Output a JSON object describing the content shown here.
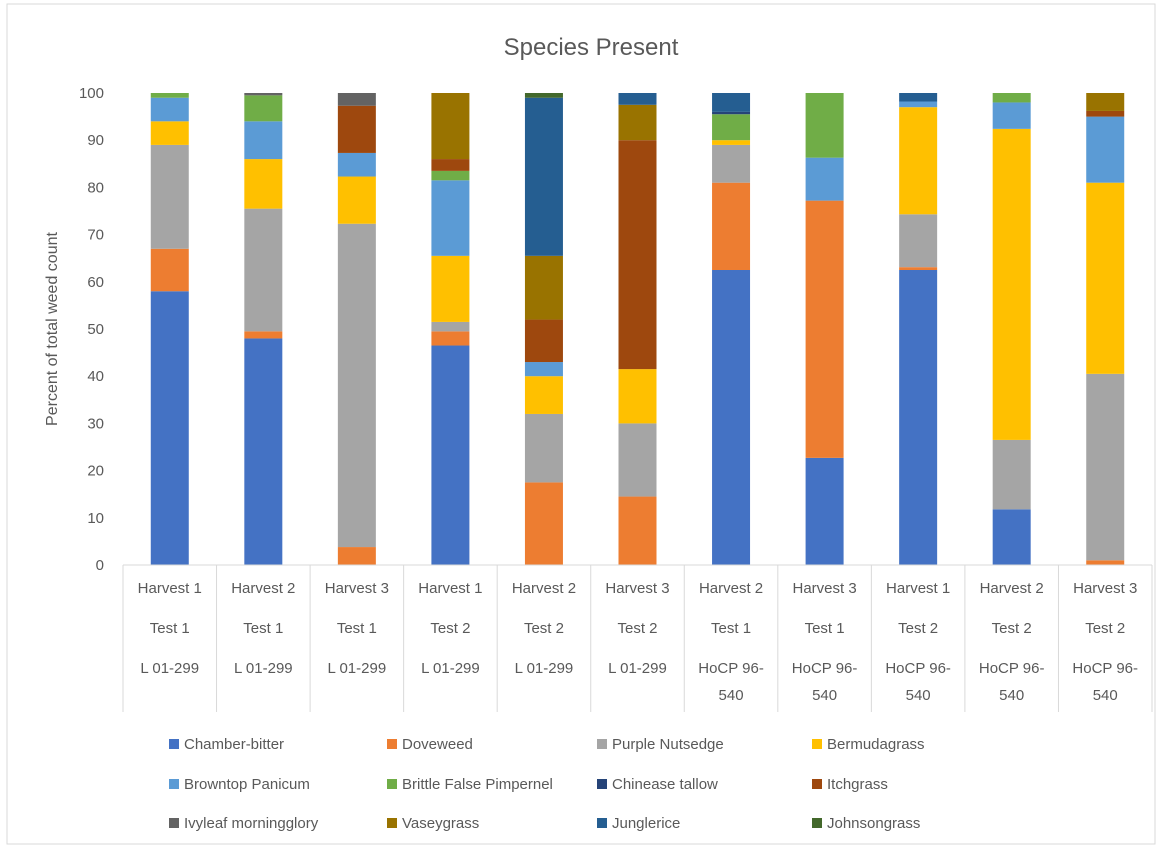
{
  "chart_data": {
    "type": "bar",
    "stacked": true,
    "title": "Species Present",
    "ylabel": "Percent of total weed count",
    "xlabel": "",
    "ylim": [
      0,
      100
    ],
    "yticks": [
      0,
      10,
      20,
      30,
      40,
      50,
      60,
      70,
      80,
      90,
      100
    ],
    "grid": false,
    "legend_position": "bottom",
    "categories": [
      {
        "harvest": "Harvest 1",
        "test": "Test 1",
        "variety": "L 01-299"
      },
      {
        "harvest": "Harvest 2",
        "test": "Test 1",
        "variety": "L 01-299"
      },
      {
        "harvest": "Harvest 3",
        "test": "Test 1",
        "variety": "L 01-299"
      },
      {
        "harvest": "Harvest 1",
        "test": "Test 2",
        "variety": "L 01-299"
      },
      {
        "harvest": "Harvest 2",
        "test": "Test 2",
        "variety": "L 01-299"
      },
      {
        "harvest": "Harvest 3",
        "test": "Test 2",
        "variety": "L 01-299"
      },
      {
        "harvest": "Harvest 2",
        "test": "Test 1",
        "variety": "HoCP 96-540"
      },
      {
        "harvest": "Harvest 3",
        "test": "Test 1",
        "variety": "HoCP 96-540"
      },
      {
        "harvest": "Harvest 1",
        "test": "Test 2",
        "variety": "HoCP 96-540"
      },
      {
        "harvest": "Harvest 2",
        "test": "Test 2",
        "variety": "HoCP 96-540"
      },
      {
        "harvest": "Harvest 3",
        "test": "Test 2",
        "variety": "HoCP 96-540"
      }
    ],
    "series": [
      {
        "name": "Chamber-bitter",
        "color": "#4472C4",
        "values": [
          58,
          48,
          0,
          46.5,
          0,
          0,
          62.5,
          22.7,
          62.5,
          11.8,
          0
        ]
      },
      {
        "name": "Doveweed",
        "color": "#ED7D31",
        "values": [
          9,
          1.5,
          3.8,
          3,
          17.5,
          14.5,
          18.5,
          54.5,
          0.6,
          0,
          1
        ]
      },
      {
        "name": "Purple Nutsedge",
        "color": "#A5A5A5",
        "values": [
          22,
          26,
          68.5,
          2,
          14.5,
          15.5,
          8,
          0,
          11.2,
          14.7,
          39.5
        ]
      },
      {
        "name": "Bermudagrass",
        "color": "#FFC000",
        "values": [
          5,
          10.5,
          10,
          14,
          8,
          11.5,
          1,
          0,
          22.7,
          65.9,
          40.5
        ]
      },
      {
        "name": "Browntop Panicum",
        "color": "#5B9BD5",
        "values": [
          5,
          8,
          5,
          16,
          3,
          0,
          0,
          9.1,
          1.2,
          5.6,
          14
        ]
      },
      {
        "name": "Brittle False Pimpernel",
        "color": "#70AD47",
        "values": [
          1,
          5.5,
          0,
          2,
          0,
          0,
          5.5,
          13.7,
          0,
          2,
          0
        ]
      },
      {
        "name": "Chinease tallow",
        "color": "#264478",
        "values": [
          0,
          0,
          0,
          0,
          0,
          0,
          0.5,
          0,
          0,
          0,
          0
        ]
      },
      {
        "name": "Itchgrass",
        "color": "#9E480E",
        "values": [
          0,
          0,
          10,
          2.5,
          9,
          48.5,
          0,
          0,
          0,
          0,
          1.2
        ]
      },
      {
        "name": "Ivyleaf morningglory",
        "color": "#636363",
        "values": [
          0,
          0.5,
          2.7,
          0,
          0,
          0,
          0,
          0,
          0,
          0,
          0
        ]
      },
      {
        "name": "Vaseygrass",
        "color": "#997300",
        "values": [
          0,
          0,
          0,
          14,
          13.5,
          7.5,
          0,
          0,
          0,
          0,
          3.8
        ]
      },
      {
        "name": "Junglerice",
        "color": "#255E91",
        "values": [
          0,
          0,
          0,
          0,
          33.5,
          2.5,
          4,
          0,
          1.8,
          0,
          0
        ]
      },
      {
        "name": "Johnsongrass",
        "color": "#43682B",
        "values": [
          0,
          0,
          0,
          0,
          1,
          0,
          0,
          0,
          0,
          0,
          0
        ]
      }
    ]
  }
}
